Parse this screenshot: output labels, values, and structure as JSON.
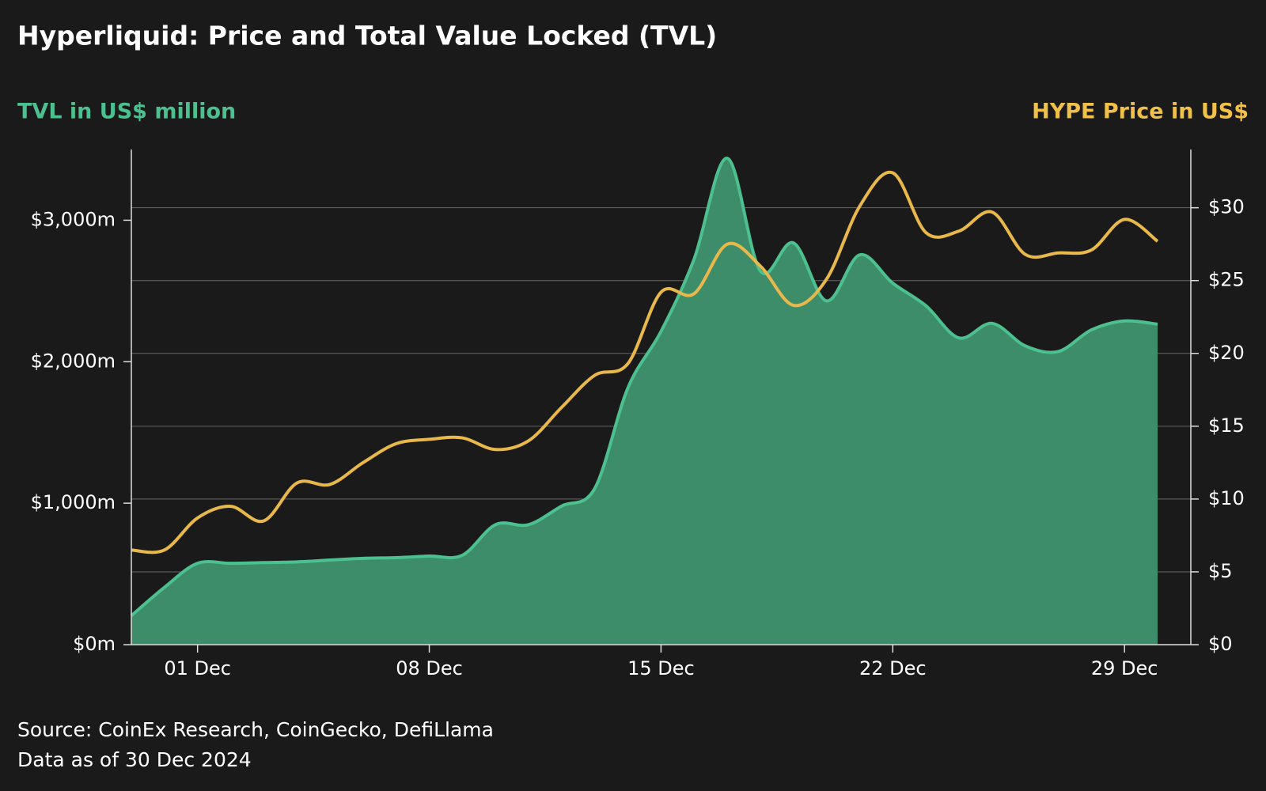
{
  "chart_data": {
    "type": "area-line",
    "title": "Hyperliquid: Price and Total Value Locked (TVL)",
    "y_axis_title": "TVL in US$ million",
    "y2_axis_title": "HYPE Price in US$",
    "source": "Source: CoinEx Research, CoinGecko, DefiLlama",
    "note": "Data as of 30 Dec 2024",
    "categories": [
      null,
      null,
      "01 Dec",
      null,
      null,
      null,
      null,
      null,
      null,
      "08 Dec",
      null,
      null,
      null,
      null,
      null,
      null,
      "15 Dec",
      null,
      null,
      null,
      null,
      null,
      null,
      "22 Dec",
      null,
      null,
      null,
      null,
      null,
      null,
      "29 Dec",
      null
    ],
    "series": [
      {
        "name": "TVL",
        "type": "area",
        "color": "#4cc08e",
        "fill": "#3d8c6a",
        "axis": "y",
        "values": [
          205,
          405,
          575,
          575,
          580,
          585,
          598,
          610,
          615,
          626,
          632,
          848,
          848,
          980,
          1105,
          1815,
          2214,
          2726,
          3438,
          2641,
          2840,
          2430,
          2755,
          2555,
          2396,
          2168,
          2271,
          2112,
          2072,
          2225,
          2288,
          2265
        ]
      },
      {
        "name": "HYPE Price",
        "type": "line",
        "color": "#e8b84a",
        "axis": "y2",
        "values": [
          6.5,
          6.5,
          8.7,
          9.5,
          8.5,
          11.1,
          11.0,
          12.5,
          13.8,
          14.1,
          14.2,
          13.4,
          14.0,
          16.3,
          18.5,
          19.3,
          24.2,
          24.1,
          27.5,
          26.0,
          23.3,
          25.1,
          30.1,
          32.4,
          28.3,
          28.4,
          29.7,
          26.8,
          26.9,
          27.1,
          29.2,
          27.7
        ]
      }
    ],
    "ylim": [
      0,
      3500
    ],
    "yticks": [
      {
        "value": 0,
        "label": "$0m"
      },
      {
        "value": 1000,
        "label": "$1,000m"
      },
      {
        "value": 2000,
        "label": "$2,000m"
      },
      {
        "value": 3000,
        "label": "$3,000m"
      }
    ],
    "y2lim": [
      0,
      34
    ],
    "y2ticks": [
      {
        "value": 0,
        "label": "$0"
      },
      {
        "value": 5,
        "label": "$5"
      },
      {
        "value": 10,
        "label": "$10"
      },
      {
        "value": 15,
        "label": "$15"
      },
      {
        "value": 20,
        "label": "$20"
      },
      {
        "value": 25,
        "label": "$25"
      },
      {
        "value": 30,
        "label": "$30"
      }
    ],
    "grid": "y2"
  }
}
